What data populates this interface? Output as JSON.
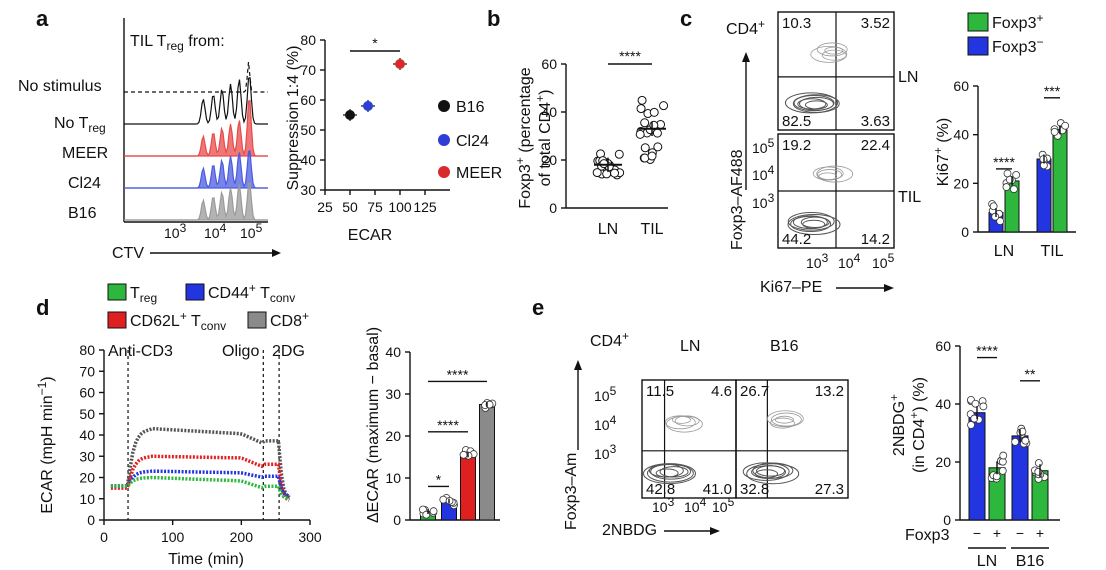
{
  "panels": {
    "a": "a",
    "b": "b",
    "c": "c",
    "d": "d",
    "e": "e"
  },
  "a": {
    "hist_title_main": "TIL T",
    "hist_title_sub": "reg",
    "hist_title_tail": " from:",
    "rows": [
      {
        "label": "No stimulus"
      },
      {
        "label_main": "No T",
        "label_sub": "reg"
      },
      {
        "label": "MEER",
        "color": "#e84a4a"
      },
      {
        "label": "Cl24",
        "color": "#4b5be0"
      },
      {
        "label": "B16",
        "color": "#9a9a9a"
      }
    ],
    "x_label": "CTV",
    "x_ticks": [
      "10",
      "10",
      "10"
    ],
    "x_tick_exps": [
      "3",
      "4",
      "5"
    ],
    "chart_data": {
      "type": "scatter",
      "xlabel": "ECAR",
      "ylabel": "Suppression 1:4 (%)",
      "xlim": [
        25,
        125
      ],
      "ylim": [
        30,
        80
      ],
      "x_ticks": [
        "25",
        "50",
        "75",
        "100",
        "125"
      ],
      "y_ticks": [
        "30",
        "40",
        "50",
        "60",
        "70",
        "80"
      ],
      "series": [
        {
          "name": "B16",
          "x": 50,
          "y": 55,
          "color": "#111111"
        },
        {
          "name": "Cl24",
          "x": 68,
          "y": 58,
          "color": "#2e3fd6"
        },
        {
          "name": "MEER",
          "x": 100,
          "y": 72,
          "color": "#d92b2b"
        }
      ],
      "sig": "*"
    }
  },
  "b": {
    "chart_data": {
      "type": "scatter",
      "ylabel_line1": "Foxp3",
      "ylabel_sup": "+",
      "ylabel_tail": " (percentage",
      "ylabel_line2": "of total CD4",
      "ylabel2_sup": "+",
      "ylabel2_tail": ")",
      "categories": [
        "LN",
        "TIL"
      ],
      "ylim": [
        0,
        60
      ],
      "y_ticks": [
        "0",
        "20",
        "40",
        "60"
      ],
      "means": [
        18,
        33
      ],
      "sig": "****"
    }
  },
  "c": {
    "cd4_label": "CD4",
    "cd4_sup": "+",
    "y_label": "Foxp3–AF488",
    "x_label": "Ki67–PE",
    "x_ticks": [
      "10",
      "10",
      "10"
    ],
    "x_tick_exps": [
      "3",
      "4",
      "5"
    ],
    "y_ticks": [
      "10",
      "10",
      "10"
    ],
    "y_tick_exps": [
      "5",
      "4",
      "3"
    ],
    "plots": [
      {
        "label": "LN",
        "q": [
          "10.3",
          "3.52",
          "82.5",
          "3.63"
        ]
      },
      {
        "label": "TIL",
        "q": [
          "19.2",
          "22.4",
          "44.2",
          "14.2"
        ]
      }
    ],
    "legend": [
      {
        "label": "Foxp3",
        "sup": "+",
        "color": "#2db83d"
      },
      {
        "label": "Foxp3",
        "sup": "−",
        "color": "#2235e0"
      }
    ],
    "chart_data": {
      "type": "bar",
      "categories": [
        "LN",
        "TIL"
      ],
      "ylabel": "Ki67",
      "ylabel_sup": "+",
      "ylabel_tail": " (%)",
      "ylim": [
        0,
        60
      ],
      "y_ticks": [
        "0",
        "20",
        "40",
        "60"
      ],
      "series": [
        {
          "name": "Foxp3−",
          "values": [
            8,
            30
          ],
          "color": "#2235e0"
        },
        {
          "name": "Foxp3+",
          "values": [
            21,
            42
          ],
          "color": "#2db83d"
        }
      ],
      "sig": [
        "****",
        "***"
      ]
    }
  },
  "d": {
    "legend": [
      {
        "label_main": "T",
        "label_sub": "reg",
        "color": "#2db83d"
      },
      {
        "label_main": "CD44",
        "label_sup": "+",
        "label_tail": " T",
        "label_sub": "conv",
        "color": "#2235e0"
      },
      {
        "label_main": "CD62L",
        "label_sup": "+",
        "label_tail": " T",
        "label_sub": "conv",
        "color": "#e02020"
      },
      {
        "label_main": "CD8",
        "label_sup": "+",
        "color": "#8a8a8a"
      }
    ],
    "annotations": [
      "Anti-CD3",
      "Oligo",
      "2DG"
    ],
    "chart_data": [
      {
        "type": "line",
        "xlabel": "Time (min)",
        "ylabel": "ECAR (mpH min",
        "ylabel_sup": "−1",
        "ylabel_tail": ")",
        "xlim": [
          0,
          300
        ],
        "ylim": [
          0,
          80
        ],
        "x_ticks": [
          "0",
          "100",
          "200",
          "300"
        ],
        "y_ticks": [
          "0",
          "10",
          "20",
          "30",
          "40",
          "50",
          "60",
          "70",
          "80"
        ],
        "events": {
          "Anti-CD3": 35,
          "Oligo": 232,
          "2DG": 255
        },
        "series": [
          {
            "name": "CD8+",
            "color": "#555555",
            "levels": {
              "base": 16,
              "peak": 43,
              "mid": 40,
              "oligo": 36,
              "end": 10
            }
          },
          {
            "name": "CD62L+ Tconv",
            "color": "#e02020",
            "levels": {
              "base": 15,
              "peak": 30,
              "mid": 29,
              "oligo": 25,
              "end": 9
            }
          },
          {
            "name": "CD44+ Tconv",
            "color": "#2235e0",
            "levels": {
              "base": 16,
              "peak": 23,
              "mid": 22,
              "oligo": 20,
              "end": 11
            }
          },
          {
            "name": "Treg",
            "color": "#2db83d",
            "levels": {
              "base": 16,
              "peak": 20,
              "mid": 18,
              "oligo": 15,
              "end": 10
            }
          }
        ]
      },
      {
        "type": "bar",
        "ylabel": "ΔECAR (maximum − basal)",
        "ylim": [
          0,
          40
        ],
        "y_ticks": [
          "0",
          "10",
          "20",
          "30",
          "40"
        ],
        "values": [
          2,
          4.5,
          15.5,
          27.5
        ],
        "colors": [
          "#2db83d",
          "#2235e0",
          "#e02020",
          "#8a8a8a"
        ],
        "sig": [
          "*",
          "****",
          "****"
        ]
      }
    ]
  },
  "e": {
    "cd4_label": "CD4",
    "cd4_sup": "+",
    "y_label": "Foxp3–Am",
    "x_label": "2NBDG",
    "x_ticks": [
      "10",
      "10",
      "10"
    ],
    "x_tick_exps": [
      "3",
      "4",
      "5"
    ],
    "y_ticks": [
      "10",
      "10",
      "10"
    ],
    "y_tick_exps": [
      "5",
      "4",
      "3"
    ],
    "plots": [
      {
        "label": "LN",
        "q": [
          "11.5",
          "4.6",
          "42.8",
          "41.0"
        ]
      },
      {
        "label": "B16",
        "q": [
          "26.7",
          "13.2",
          "32.8",
          "27.3"
        ]
      }
    ],
    "chart_data": {
      "type": "bar",
      "ylabel_line1": "2NBDG",
      "ylabel_sup": "+",
      "ylabel_line2": "(in CD4",
      "ylabel2_sup": "+",
      "ylabel2_tail": ") (%)",
      "ylim": [
        0,
        60
      ],
      "y_ticks": [
        "0",
        "20",
        "40",
        "60"
      ],
      "groups": [
        "LN",
        "B16"
      ],
      "foxp3_label": "Foxp3",
      "foxp3_signs": [
        "−",
        "+",
        "−",
        "+"
      ],
      "values": [
        37,
        18,
        29,
        17
      ],
      "colors": [
        "#2235e0",
        "#2db83d",
        "#2235e0",
        "#2db83d"
      ],
      "sig": [
        "****",
        "**"
      ]
    }
  }
}
